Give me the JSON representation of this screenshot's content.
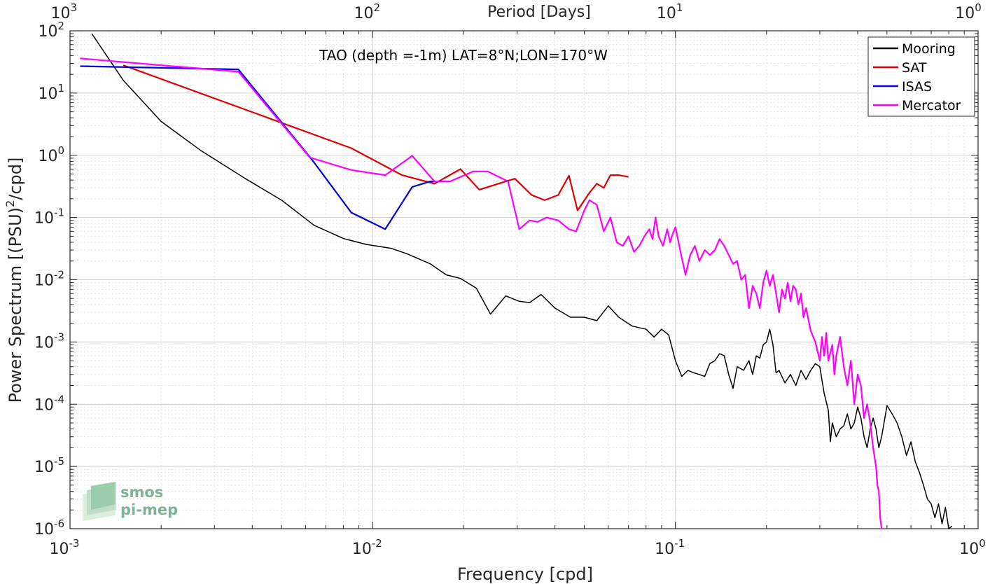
{
  "chart_data": {
    "type": "line",
    "title": "TAO (depth =-1m) LAT=8°N;LON=170°W",
    "xlabel": "Frequency [cpd]",
    "ylabel": "Power Spectrum [(PSU)",
    "ylabel_sup": "2",
    "ylabel_tail": "/cpd]",
    "top_xlabel": "Period [Days]",
    "x_scale": "log",
    "y_scale": "log",
    "xlim": [
      0.001,
      1
    ],
    "ylim": [
      1e-06,
      100
    ],
    "grid": true,
    "legend_position": "top-right",
    "x_ticks": [
      {
        "base": "10",
        "exp": "-3",
        "value": 0.001
      },
      {
        "base": "10",
        "exp": "-2",
        "value": 0.01
      },
      {
        "base": "10",
        "exp": "-1",
        "value": 0.1
      },
      {
        "base": "10",
        "exp": "0",
        "value": 1
      }
    ],
    "top_ticks": [
      {
        "base": "10",
        "exp": "3",
        "value": 0.001
      },
      {
        "base": "10",
        "exp": "2",
        "value": 0.01
      },
      {
        "base": "10",
        "exp": "1",
        "value": 0.1
      },
      {
        "base": "10",
        "exp": "0",
        "value": 1
      }
    ],
    "y_ticks": [
      {
        "base": "10",
        "exp": "2",
        "value": 100
      },
      {
        "base": "10",
        "exp": "1",
        "value": 10
      },
      {
        "base": "10",
        "exp": "0",
        "value": 1
      },
      {
        "base": "10",
        "exp": "-1",
        "value": 0.1
      },
      {
        "base": "10",
        "exp": "-2",
        "value": 0.01
      },
      {
        "base": "10",
        "exp": "-3",
        "value": 0.001
      },
      {
        "base": "10",
        "exp": "-4",
        "value": 0.0001
      },
      {
        "base": "10",
        "exp": "-5",
        "value": 1e-05
      },
      {
        "base": "10",
        "exp": "-6",
        "value": 1e-06
      }
    ],
    "series": [
      {
        "name": "Mooring",
        "color": "#000000",
        "points": [
          [
            0.00118,
            90
          ],
          [
            0.0015,
            16
          ],
          [
            0.002,
            3.5
          ],
          [
            0.0027,
            1.2
          ],
          [
            0.0038,
            0.42
          ],
          [
            0.005,
            0.19
          ],
          [
            0.0064,
            0.075
          ],
          [
            0.008,
            0.046
          ],
          [
            0.0095,
            0.037
          ],
          [
            0.0115,
            0.032
          ],
          [
            0.013,
            0.026
          ],
          [
            0.0155,
            0.018
          ],
          [
            0.0175,
            0.012
          ],
          [
            0.0195,
            0.0105
          ],
          [
            0.022,
            0.0073
          ],
          [
            0.0245,
            0.0028
          ],
          [
            0.0275,
            0.0055
          ],
          [
            0.0305,
            0.0045
          ],
          [
            0.033,
            0.0043
          ],
          [
            0.036,
            0.0058
          ],
          [
            0.04,
            0.0035
          ],
          [
            0.045,
            0.0025
          ],
          [
            0.05,
            0.0025
          ],
          [
            0.055,
            0.0022
          ],
          [
            0.06,
            0.0038
          ],
          [
            0.065,
            0.0025
          ],
          [
            0.072,
            0.0018
          ],
          [
            0.08,
            0.0016
          ],
          [
            0.085,
            0.0012
          ],
          [
            0.09,
            0.0016
          ],
          [
            0.095,
            0.0013
          ],
          [
            0.1,
            0.0005
          ],
          [
            0.105,
            0.00028
          ],
          [
            0.11,
            0.00035
          ],
          [
            0.115,
            0.00032
          ],
          [
            0.12,
            0.0003
          ],
          [
            0.125,
            0.00028
          ],
          [
            0.13,
            0.00045
          ],
          [
            0.135,
            0.0005
          ],
          [
            0.14,
            0.00065
          ],
          [
            0.145,
            0.0006
          ],
          [
            0.15,
            0.0003
          ],
          [
            0.155,
            0.00018
          ],
          [
            0.16,
            0.0004
          ],
          [
            0.168,
            0.00035
          ],
          [
            0.175,
            0.0005
          ],
          [
            0.18,
            0.0003
          ],
          [
            0.185,
            0.0006
          ],
          [
            0.19,
            0.00055
          ],
          [
            0.195,
            0.0009
          ],
          [
            0.2,
            0.001
          ],
          [
            0.205,
            0.0016
          ],
          [
            0.21,
            0.0009
          ],
          [
            0.215,
            0.00032
          ],
          [
            0.22,
            0.00035
          ],
          [
            0.23,
            0.00022
          ],
          [
            0.24,
            0.0003
          ],
          [
            0.25,
            0.0002
          ],
          [
            0.26,
            0.00035
          ],
          [
            0.27,
            0.00025
          ],
          [
            0.28,
            0.00035
          ],
          [
            0.29,
            0.00045
          ],
          [
            0.3,
            0.0004
          ],
          [
            0.31,
            0.00015
          ],
          [
            0.32,
            8e-05
          ],
          [
            0.325,
            2.5e-05
          ],
          [
            0.33,
            5e-05
          ],
          [
            0.34,
            3e-05
          ],
          [
            0.35,
            4e-05
          ],
          [
            0.36,
            4.5e-05
          ],
          [
            0.37,
            7e-05
          ],
          [
            0.38,
            4e-05
          ],
          [
            0.39,
            5e-05
          ],
          [
            0.4,
            9e-05
          ],
          [
            0.41,
            6e-05
          ],
          [
            0.42,
            3e-05
          ],
          [
            0.43,
            2e-05
          ],
          [
            0.44,
            4e-05
          ],
          [
            0.45,
            6e-05
          ],
          [
            0.46,
            4e-05
          ],
          [
            0.47,
            2e-05
          ],
          [
            0.48,
            3e-05
          ],
          [
            0.5,
            9.5e-05
          ],
          [
            0.52,
            7e-05
          ],
          [
            0.54,
            5e-05
          ],
          [
            0.56,
            3e-05
          ],
          [
            0.58,
            1.5e-05
          ],
          [
            0.6,
            2.5e-05
          ],
          [
            0.62,
            1.2e-05
          ],
          [
            0.64,
            8e-06
          ],
          [
            0.66,
            5e-06
          ],
          [
            0.68,
            3e-06
          ],
          [
            0.7,
            2.5e-06
          ],
          [
            0.72,
            1.5e-06
          ],
          [
            0.74,
            2.5e-06
          ],
          [
            0.76,
            1.2e-06
          ],
          [
            0.78,
            2.2e-06
          ],
          [
            0.8,
            1e-06
          ],
          [
            0.82,
            1.1e-06
          ]
        ]
      },
      {
        "name": "SAT",
        "color": "#e00000",
        "points": [
          [
            0.0015,
            28
          ],
          [
            0.0085,
            1.3
          ],
          [
            0.0125,
            0.48
          ],
          [
            0.016,
            0.35
          ],
          [
            0.0195,
            0.6
          ],
          [
            0.0225,
            0.28
          ],
          [
            0.0275,
            0.38
          ],
          [
            0.0295,
            0.42
          ],
          [
            0.0335,
            0.23
          ],
          [
            0.037,
            0.19
          ],
          [
            0.041,
            0.23
          ],
          [
            0.0445,
            0.47
          ],
          [
            0.0475,
            0.13
          ],
          [
            0.052,
            0.25
          ],
          [
            0.055,
            0.35
          ],
          [
            0.058,
            0.3
          ],
          [
            0.061,
            0.48
          ],
          [
            0.065,
            0.48
          ],
          [
            0.07,
            0.45
          ]
        ]
      },
      {
        "name": "ISAS",
        "color": "#0000e0",
        "points": [
          [
            0.00108,
            27
          ],
          [
            0.0036,
            24
          ],
          [
            0.0063,
            0.85
          ],
          [
            0.0085,
            0.12
          ],
          [
            0.011,
            0.065
          ],
          [
            0.0135,
            0.31
          ],
          [
            0.0155,
            0.38
          ],
          [
            0.017,
            0.38
          ]
        ]
      },
      {
        "name": "Mercator",
        "color": "#ff00ff",
        "points": [
          [
            0.00108,
            36
          ],
          [
            0.0036,
            22
          ],
          [
            0.0062,
            0.92
          ],
          [
            0.0085,
            0.58
          ],
          [
            0.011,
            0.48
          ],
          [
            0.0135,
            0.98
          ],
          [
            0.016,
            0.38
          ],
          [
            0.018,
            0.38
          ],
          [
            0.0215,
            0.55
          ],
          [
            0.024,
            0.55
          ],
          [
            0.028,
            0.38
          ],
          [
            0.0305,
            0.065
          ],
          [
            0.033,
            0.09
          ],
          [
            0.035,
            0.085
          ],
          [
            0.0375,
            0.1
          ],
          [
            0.041,
            0.09
          ],
          [
            0.0445,
            0.065
          ],
          [
            0.047,
            0.06
          ],
          [
            0.05,
            0.13
          ],
          [
            0.052,
            0.19
          ],
          [
            0.055,
            0.16
          ],
          [
            0.058,
            0.06
          ],
          [
            0.061,
            0.1
          ],
          [
            0.064,
            0.04
          ],
          [
            0.067,
            0.035
          ],
          [
            0.07,
            0.05
          ],
          [
            0.073,
            0.028
          ],
          [
            0.076,
            0.035
          ],
          [
            0.079,
            0.05
          ],
          [
            0.082,
            0.065
          ],
          [
            0.084,
            0.045
          ],
          [
            0.086,
            0.1
          ],
          [
            0.088,
            0.05
          ],
          [
            0.091,
            0.035
          ],
          [
            0.094,
            0.065
          ],
          [
            0.096,
            0.04
          ],
          [
            0.098,
            0.055
          ],
          [
            0.1,
            0.07
          ],
          [
            0.104,
            0.028
          ],
          [
            0.108,
            0.012
          ],
          [
            0.112,
            0.025
          ],
          [
            0.116,
            0.035
          ],
          [
            0.12,
            0.02
          ],
          [
            0.125,
            0.03
          ],
          [
            0.13,
            0.025
          ],
          [
            0.135,
            0.03
          ],
          [
            0.14,
            0.045
          ],
          [
            0.145,
            0.035
          ],
          [
            0.15,
            0.025
          ],
          [
            0.155,
            0.018
          ],
          [
            0.16,
            0.02
          ],
          [
            0.165,
            0.01
          ],
          [
            0.17,
            0.012
          ],
          [
            0.175,
            0.0035
          ],
          [
            0.18,
            0.008
          ],
          [
            0.185,
            0.006
          ],
          [
            0.19,
            0.0035
          ],
          [
            0.195,
            0.009
          ],
          [
            0.2,
            0.014
          ],
          [
            0.205,
            0.008
          ],
          [
            0.21,
            0.012
          ],
          [
            0.215,
            0.006
          ],
          [
            0.22,
            0.003
          ],
          [
            0.225,
            0.007
          ],
          [
            0.23,
            0.005
          ],
          [
            0.235,
            0.009
          ],
          [
            0.24,
            0.0045
          ],
          [
            0.245,
            0.008
          ],
          [
            0.25,
            0.007
          ],
          [
            0.255,
            0.004
          ],
          [
            0.26,
            0.006
          ],
          [
            0.265,
            0.0025
          ],
          [
            0.27,
            0.0035
          ],
          [
            0.28,
            0.0015
          ],
          [
            0.29,
            0.001
          ],
          [
            0.3,
            0.0005
          ],
          [
            0.305,
            0.0012
          ],
          [
            0.31,
            0.0006
          ],
          [
            0.315,
            0.0014
          ],
          [
            0.32,
            0.0005
          ],
          [
            0.33,
            0.0009
          ],
          [
            0.335,
            0.0003
          ],
          [
            0.34,
            0.0006
          ],
          [
            0.35,
            0.0012
          ],
          [
            0.36,
            0.0004
          ],
          [
            0.37,
            0.0002
          ],
          [
            0.38,
            0.0005
          ],
          [
            0.39,
            0.0001
          ],
          [
            0.4,
            0.0003
          ],
          [
            0.41,
            0.0002
          ],
          [
            0.42,
            6e-05
          ],
          [
            0.43,
            0.0001
          ],
          [
            0.44,
            5e-05
          ],
          [
            0.45,
            2e-05
          ],
          [
            0.46,
            1e-05
          ],
          [
            0.465,
            5e-06
          ],
          [
            0.47,
            4e-06
          ],
          [
            0.475,
            1.5e-06
          ],
          [
            0.48,
            1e-06
          ]
        ]
      }
    ]
  },
  "logo": {
    "line1": "smos",
    "line2": "pi-mep"
  }
}
